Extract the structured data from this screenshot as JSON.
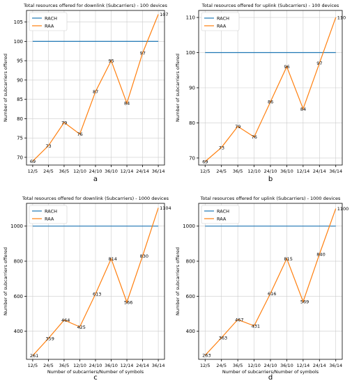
{
  "colors": {
    "rach": "#1f77b4",
    "raa": "#ff7f0e",
    "grid": "#cccccc",
    "axis": "#000000"
  },
  "chart_data": [
    {
      "type": "line",
      "title": "Total resources offered for downlink (Subcarriers) - 100 devices",
      "caption": "a",
      "xlabel": "",
      "ylabel": "Number of subcarriers offered",
      "categories": [
        "12/5",
        "24/5",
        "36/5",
        "12/10",
        "24/10",
        "36/10",
        "12/14",
        "24/14",
        "36/14"
      ],
      "ylim": [
        68,
        108
      ],
      "yticks": [
        70,
        75,
        80,
        85,
        90,
        95,
        100,
        105
      ],
      "grid": true,
      "legend": "top-left",
      "series": [
        {
          "name": "RACH",
          "values": [
            100,
            100,
            100,
            100,
            100,
            100,
            100,
            100,
            100
          ],
          "labels": false
        },
        {
          "name": "RAA",
          "values": [
            69,
            73,
            79,
            76,
            87,
            95,
            84,
            97,
            107
          ],
          "labels": true
        }
      ]
    },
    {
      "type": "line",
      "title": "Total resources offered for uplink (Subcarriers) - 100 devices",
      "caption": "b",
      "xlabel": "",
      "ylabel": "Number of subcarriers offered",
      "categories": [
        "12/5",
        "24/5",
        "36/5",
        "12/10",
        "24/10",
        "36/10",
        "12/14",
        "24/14",
        "36/14"
      ],
      "ylim": [
        68,
        112
      ],
      "yticks": [
        70,
        80,
        90,
        100,
        110
      ],
      "grid": true,
      "legend": "top-left",
      "series": [
        {
          "name": "RACH",
          "values": [
            100,
            100,
            100,
            100,
            100,
            100,
            100,
            100,
            100
          ],
          "labels": false
        },
        {
          "name": "RAA",
          "values": [
            69,
            73,
            79,
            76,
            86,
            96,
            84,
            97,
            110
          ],
          "labels": true
        }
      ]
    },
    {
      "type": "line",
      "title": "Total resources offered for downlink (Subcarriers) - 1000 devices",
      "caption": "c",
      "xlabel": "Number of subcarriers/Number of symbols",
      "ylabel": "Number of subcarriers offered",
      "categories": [
        "12/5",
        "24/5",
        "36/5",
        "12/10",
        "24/10",
        "36/10",
        "12/14",
        "24/14",
        "36/14"
      ],
      "ylim": [
        240,
        1130
      ],
      "yticks": [
        400,
        600,
        800,
        1000
      ],
      "grid": true,
      "legend": "top-left",
      "series": [
        {
          "name": "RACH",
          "values": [
            1000,
            1000,
            1000,
            1000,
            1000,
            1000,
            1000,
            1000,
            1000
          ],
          "labels": false
        },
        {
          "name": "RAA",
          "values": [
            261,
            359,
            464,
            425,
            613,
            814,
            566,
            830,
            1104
          ],
          "labels": true
        }
      ]
    },
    {
      "type": "line",
      "title": "Total resources offered for uplink (Subcarriers) - 1000 devices",
      "caption": "d",
      "xlabel": "Number of subcarriers/Number of symbols",
      "ylabel": "Number of subcarriers offered",
      "categories": [
        "12/5",
        "24/5",
        "36/5",
        "12/10",
        "24/10",
        "36/10",
        "12/14",
        "24/14",
        "36/14"
      ],
      "ylim": [
        240,
        1130
      ],
      "yticks": [
        400,
        600,
        800,
        1000
      ],
      "grid": true,
      "legend": "top-left",
      "series": [
        {
          "name": "RACH",
          "values": [
            1000,
            1000,
            1000,
            1000,
            1000,
            1000,
            1000,
            1000,
            1000
          ],
          "labels": false
        },
        {
          "name": "RAA",
          "values": [
            263,
            363,
            467,
            431,
            616,
            815,
            569,
            840,
            1100
          ],
          "labels": true
        }
      ]
    }
  ]
}
